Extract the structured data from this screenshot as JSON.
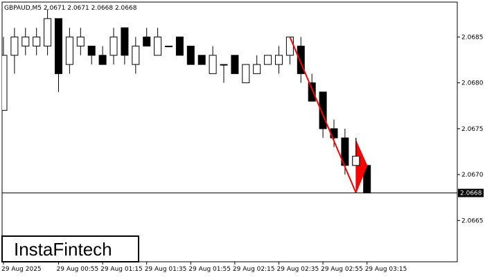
{
  "chart_data": {
    "type": "candlestick",
    "title": "GBPAUD,M5  2.0671 2.0671 2.0668 2.0668",
    "symbol": "GBPAUD",
    "timeframe": "M5",
    "ohlc_header": "2.0671 2.0671 2.0668 2.0668",
    "current_price": 2.0668,
    "current_price_label": "2.0668",
    "ylim": [
      2.06605,
      2.06888
    ],
    "y_ticks": [
      {
        "value": 2.0665,
        "label": "2.0665"
      },
      {
        "value": 2.067,
        "label": "2.0670"
      },
      {
        "value": 2.0675,
        "label": "2.0675"
      },
      {
        "value": 2.068,
        "label": "2.0680"
      },
      {
        "value": 2.0685,
        "label": "2.0685"
      }
    ],
    "x_ticks": [
      {
        "index": 0,
        "label": "29 Aug 2025"
      },
      {
        "index": 5,
        "label": "29 Aug 00:55"
      },
      {
        "index": 9,
        "label": "29 Aug 01:15"
      },
      {
        "index": 13,
        "label": "29 Aug 01:35"
      },
      {
        "index": 17,
        "label": "29 Aug 01:55"
      },
      {
        "index": 21,
        "label": "29 Aug 02:15"
      },
      {
        "index": 25,
        "label": "29 Aug 02:35"
      },
      {
        "index": 29,
        "label": "29 Aug 02:55"
      },
      {
        "index": 33,
        "label": "29 Aug 03:15"
      }
    ],
    "candles": [
      {
        "o": 2.0677,
        "h": 2.0685,
        "l": 2.0677,
        "c": 2.0683
      },
      {
        "o": 2.0683,
        "h": 2.0686,
        "l": 2.0681,
        "c": 2.0685
      },
      {
        "o": 2.0684,
        "h": 2.0686,
        "l": 2.0683,
        "c": 2.0685
      },
      {
        "o": 2.0684,
        "h": 2.0686,
        "l": 2.0683,
        "c": 2.0685
      },
      {
        "o": 2.0684,
        "h": 2.0688,
        "l": 2.0683,
        "c": 2.0687
      },
      {
        "o": 2.0687,
        "h": 2.0687,
        "l": 2.0679,
        "c": 2.0681
      },
      {
        "o": 2.0682,
        "h": 2.0686,
        "l": 2.0681,
        "c": 2.0685
      },
      {
        "o": 2.0684,
        "h": 2.0686,
        "l": 2.0683,
        "c": 2.0685
      },
      {
        "o": 2.0684,
        "h": 2.0684,
        "l": 2.0682,
        "c": 2.0683
      },
      {
        "o": 2.0683,
        "h": 2.0684,
        "l": 2.0682,
        "c": 2.0682
      },
      {
        "o": 2.0683,
        "h": 2.0686,
        "l": 2.0682,
        "c": 2.0685
      },
      {
        "o": 2.0686,
        "h": 2.0686,
        "l": 2.0682,
        "c": 2.0683
      },
      {
        "o": 2.0682,
        "h": 2.0685,
        "l": 2.0681,
        "c": 2.0684
      },
      {
        "o": 2.0685,
        "h": 2.0686,
        "l": 2.0684,
        "c": 2.0684
      },
      {
        "o": 2.0683,
        "h": 2.0686,
        "l": 2.0683,
        "c": 2.0685
      },
      {
        "o": 2.0684,
        "h": 2.0684,
        "l": 2.0684,
        "c": 2.0684
      },
      {
        "o": 2.0685,
        "h": 2.0685,
        "l": 2.0683,
        "c": 2.0683
      },
      {
        "o": 2.0684,
        "h": 2.0684,
        "l": 2.0682,
        "c": 2.0682
      },
      {
        "o": 2.0683,
        "h": 2.0683,
        "l": 2.0682,
        "c": 2.0682
      },
      {
        "o": 2.0681,
        "h": 2.0684,
        "l": 2.0681,
        "c": 2.0683
      },
      {
        "o": 2.0682,
        "h": 2.0682,
        "l": 2.068,
        "c": 2.0682
      },
      {
        "o": 2.0683,
        "h": 2.0683,
        "l": 2.0681,
        "c": 2.0681
      },
      {
        "o": 2.068,
        "h": 2.0682,
        "l": 2.068,
        "c": 2.0682
      },
      {
        "o": 2.0681,
        "h": 2.0683,
        "l": 2.0681,
        "c": 2.0682
      },
      {
        "o": 2.0682,
        "h": 2.0683,
        "l": 2.0682,
        "c": 2.0683
      },
      {
        "o": 2.0682,
        "h": 2.0684,
        "l": 2.0681,
        "c": 2.0683
      },
      {
        "o": 2.0683,
        "h": 2.0685,
        "l": 2.0682,
        "c": 2.0685
      },
      {
        "o": 2.0684,
        "h": 2.0685,
        "l": 2.068,
        "c": 2.0681
      },
      {
        "o": 2.068,
        "h": 2.0681,
        "l": 2.0678,
        "c": 2.0678
      },
      {
        "o": 2.0679,
        "h": 2.0679,
        "l": 2.0674,
        "c": 2.0675
      },
      {
        "o": 2.0675,
        "h": 2.0676,
        "l": 2.0673,
        "c": 2.0674
      },
      {
        "o": 2.0674,
        "h": 2.0675,
        "l": 2.067,
        "c": 2.0671
      },
      {
        "o": 2.0671,
        "h": 2.0674,
        "l": 2.0671,
        "c": 2.0672
      },
      {
        "o": 2.0671,
        "h": 2.0671,
        "l": 2.0668,
        "c": 2.0668
      }
    ],
    "pattern_line": {
      "from": {
        "index": 26,
        "price": 2.0685
      },
      "to": {
        "index": 32,
        "price": 2.0668
      }
    },
    "pennant": {
      "tip": {
        "index": 32,
        "price": 2.0668
      },
      "top": {
        "index": 32,
        "price": 2.06737
      },
      "right": {
        "index": 33,
        "price": 2.0671
      },
      "color": "#ff0000"
    },
    "colors": {
      "bull_body": "#ffffff",
      "bear_body": "#000000",
      "outline": "#000000",
      "pattern": "#ff0000"
    }
  },
  "branding": {
    "logo_text": "InstaFintech"
  }
}
